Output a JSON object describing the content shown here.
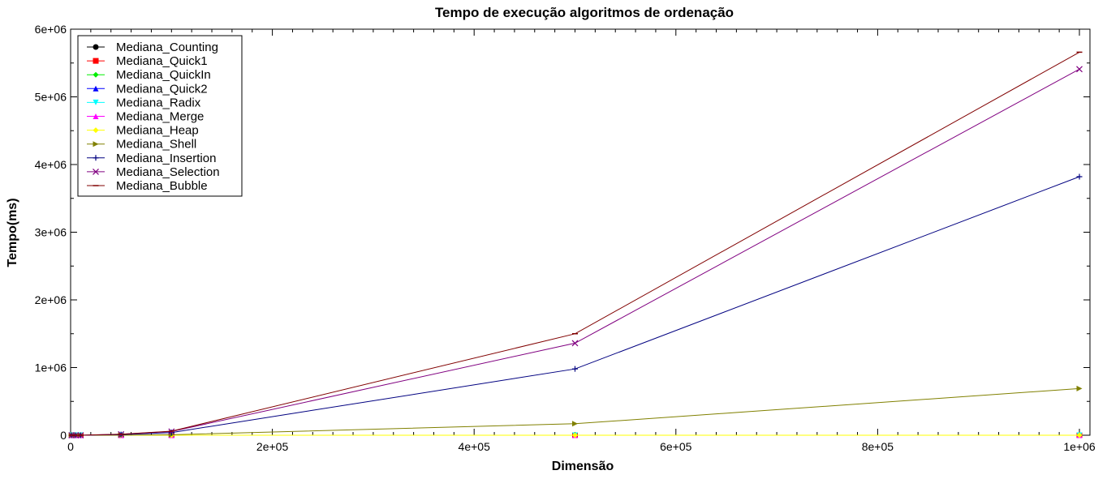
{
  "chart_data": {
    "type": "line",
    "title": "Tempo de execução algoritmos de ordenação",
    "xlabel": "Dimensão",
    "ylabel": "Tempo(ms)",
    "xlim": [
      0,
      1000000
    ],
    "ylim": [
      0,
      6000000
    ],
    "x_ticks": [
      0,
      200000,
      400000,
      600000,
      800000,
      1000000
    ],
    "x_tick_labels": [
      "0",
      "2e+05",
      "4e+05",
      "6e+05",
      "8e+05",
      "1e+06"
    ],
    "y_ticks": [
      0,
      1000000,
      2000000,
      3000000,
      4000000,
      5000000,
      6000000
    ],
    "y_tick_labels": [
      "0",
      "1e+06",
      "2e+06",
      "3e+06",
      "4e+06",
      "5e+06",
      "6e+06"
    ],
    "grid": false,
    "legend_position": "top-left",
    "x": [
      1000,
      5000,
      10000,
      50000,
      100000,
      500000,
      1000000
    ],
    "series": [
      {
        "name": "Mediana_Counting",
        "color": "#000000",
        "marker": "circle",
        "values": [
          0,
          0,
          0,
          0,
          0,
          0,
          0
        ]
      },
      {
        "name": "Mediana_Quick1",
        "color": "#ff0000",
        "marker": "square",
        "values": [
          0,
          0,
          0,
          0,
          0,
          0,
          0
        ]
      },
      {
        "name": "Mediana_QuickIn",
        "color": "#00ee00",
        "marker": "diamond",
        "values": [
          0,
          0,
          0,
          0,
          0,
          0,
          0
        ]
      },
      {
        "name": "Mediana_Quick2",
        "color": "#0000ff",
        "marker": "triangle-up",
        "values": [
          0,
          0,
          0,
          0,
          0,
          0,
          0
        ]
      },
      {
        "name": "Mediana_Radix",
        "color": "#00ffff",
        "marker": "triangle-down",
        "values": [
          0,
          0,
          0,
          0,
          0,
          0,
          0
        ]
      },
      {
        "name": "Mediana_Merge",
        "color": "#ff00ff",
        "marker": "triangle-up",
        "values": [
          0,
          0,
          0,
          0,
          0,
          0,
          0
        ]
      },
      {
        "name": "Mediana_Heap",
        "color": "#ffff00",
        "marker": "diamond",
        "values": [
          0,
          0,
          0,
          0,
          0,
          0,
          0
        ]
      },
      {
        "name": "Mediana_Shell",
        "color": "#808000",
        "marker": "triangle-right",
        "values": [
          0,
          0,
          0,
          1000,
          7000,
          170000,
          690000
        ]
      },
      {
        "name": "Mediana_Insertion",
        "color": "#000080",
        "marker": "plus",
        "values": [
          0,
          0,
          0,
          10000,
          40000,
          980000,
          3820000
        ]
      },
      {
        "name": "Mediana_Selection",
        "color": "#800080",
        "marker": "cross",
        "values": [
          0,
          0,
          0,
          14000,
          55000,
          1360000,
          5410000
        ]
      },
      {
        "name": "Mediana_Bubble",
        "color": "#800000",
        "marker": "dash",
        "values": [
          0,
          0,
          0,
          15000,
          60000,
          1500000,
          5660000
        ]
      }
    ]
  }
}
